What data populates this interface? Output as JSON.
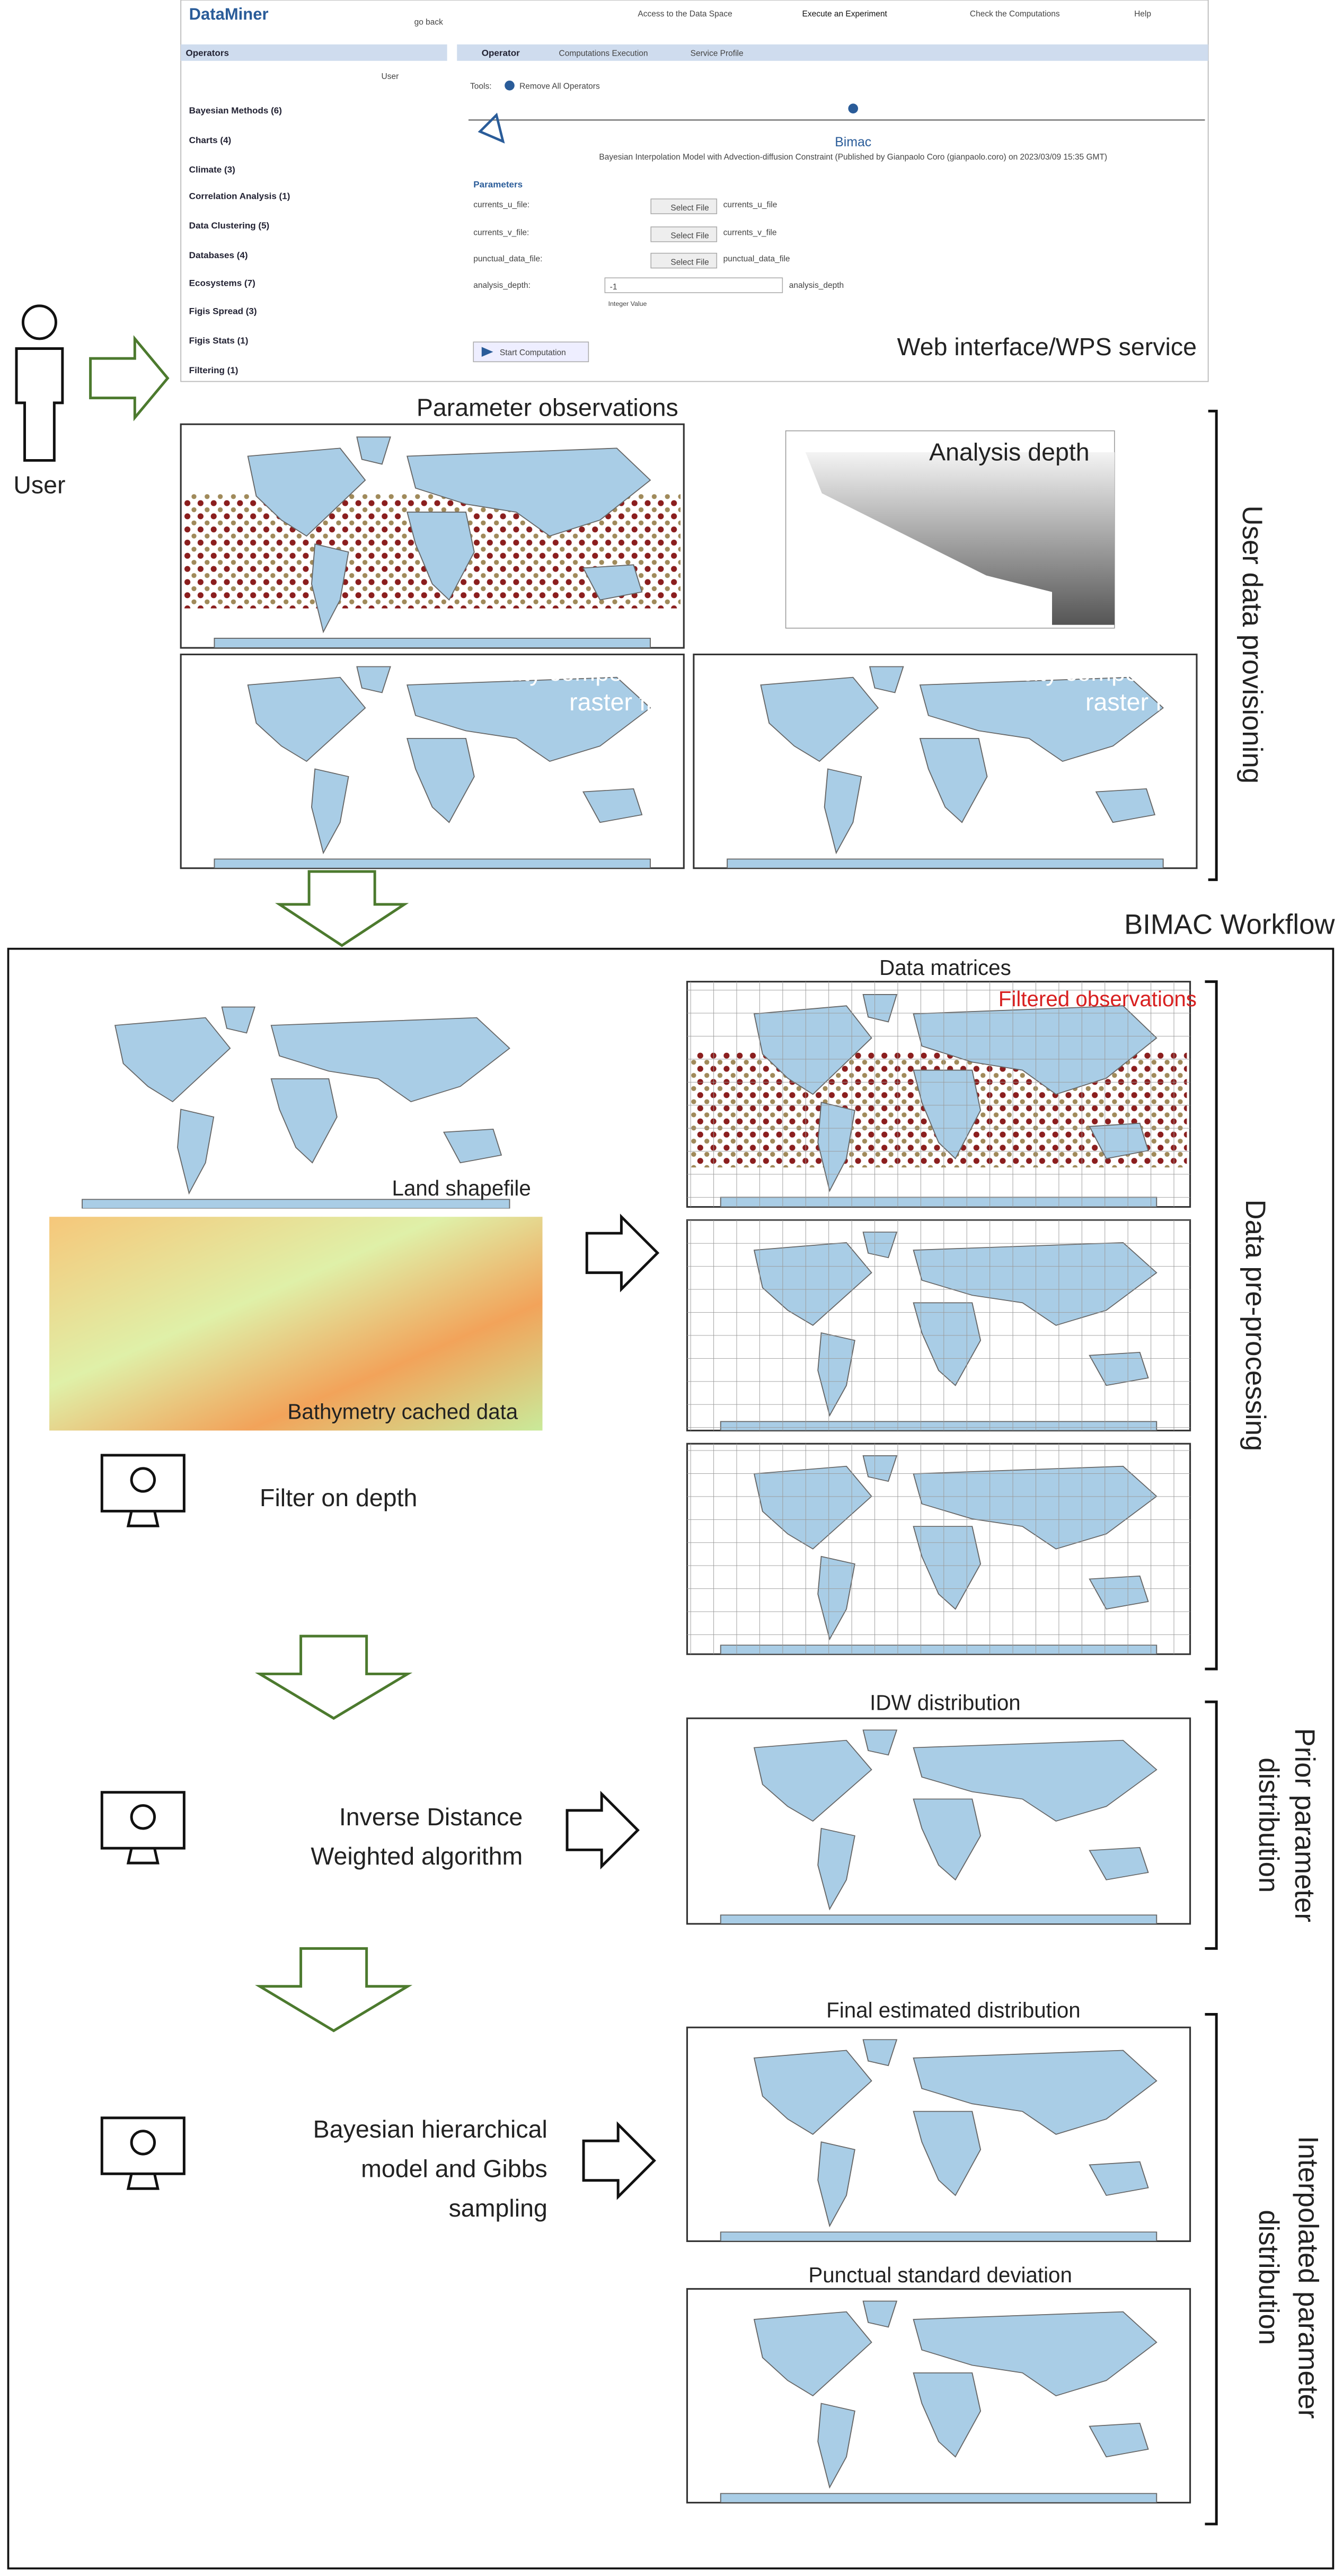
{
  "user_label": "User",
  "webui": {
    "logo": "DataMiner",
    "nav": [
      "go back",
      "Access to the Data Space",
      "Execute an Experiment",
      "Check the Computations",
      "Help"
    ],
    "operators_header": "Operators",
    "user_button": "User",
    "operators": [
      "Bayesian Methods (6)",
      "Charts (4)",
      "Climate (3)",
      "Correlation Analysis (1)",
      "Data Clustering (5)",
      "Databases (4)",
      "Ecosystems (7)",
      "Figis Spread (3)",
      "Figis Stats (1)",
      "Filtering (1)"
    ],
    "tabs": [
      "Operator",
      "Computations Execution",
      "Service Profile"
    ],
    "tools_label": "Tools:",
    "remove_all": "Remove All Operators",
    "algorithm_title": "Bimac",
    "algorithm_description": "Bayesian Interpolation Model with Advection-diffusion Constraint (Published by Gianpaolo Coro (gianpaolo.coro) on 2023/03/09 15:35 GMT)",
    "parameters_label": "Parameters",
    "parameters": [
      {
        "name": "currents_u_file:",
        "button": "Select File",
        "value": "currents_u_file"
      },
      {
        "name": "currents_v_file:",
        "button": "Select File",
        "value": "currents_v_file"
      },
      {
        "name": "punctual_data_file:",
        "button": "Select File",
        "value": "punctual_data_file"
      }
    ],
    "depth_param": {
      "name": "analysis_depth:",
      "value": "-1",
      "description": "analysis_depth",
      "hint": "Integer Value"
    },
    "start": "Start Computation",
    "caption": "Web interface/WPS service"
  },
  "provisioning": {
    "title": "User data provisioning",
    "parameter_observations": "Parameter observations",
    "analysis_depth": "Analysis depth",
    "u_velocity": [
      "u-velocity component",
      "raster file"
    ],
    "v_velocity": [
      "v-velocity component",
      "raster file"
    ]
  },
  "workflow": {
    "title": "BIMAC Workflow",
    "land_shapefile": "Land shapefile",
    "bathymetry": "Bathymetry cached data",
    "filter_on_depth": "Filter on depth",
    "idw_algorithm": [
      "Inverse Distance",
      "Weighted algorithm"
    ],
    "bayesian_model": [
      "Bayesian hierarchical",
      "model and Gibbs",
      "sampling"
    ],
    "data_matrices": "Data matrices",
    "filtered_observations": "Filtered observations",
    "idw_distribution": "IDW distribution",
    "final_distribution": "Final estimated distribution",
    "standard_deviation": "Punctual standard deviation",
    "preprocessing": "Data pre-processing",
    "prior": [
      "Prior parameter",
      "distribution"
    ],
    "interpolated": [
      "Interpolated parameter",
      "distribution"
    ]
  }
}
